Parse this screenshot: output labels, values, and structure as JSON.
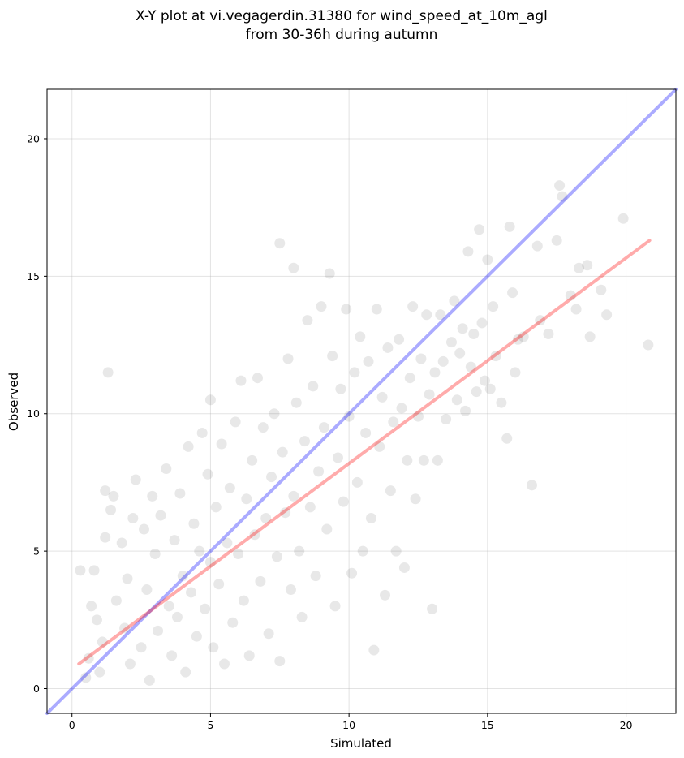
{
  "chart_data": {
    "type": "scatter",
    "title_lines": [
      "X-Y plot at vi.vegagerdin.31380 for wind_speed_at_10m_agl",
      "from 30-36h during autumn"
    ],
    "xlabel": "Simulated",
    "ylabel": "Observed",
    "xlim": [
      -0.9,
      21.8
    ],
    "ylim": [
      -0.9,
      21.8
    ],
    "xticks": [
      0,
      5,
      10,
      15,
      20
    ],
    "yticks": [
      0,
      5,
      10,
      15,
      20
    ],
    "grid": true,
    "points_style": {
      "color": "#000000",
      "opacity": 0.09
    },
    "reference_line": {
      "name": "",
      "color": "#0000ff",
      "x": [
        -0.9,
        21.8
      ],
      "y": [
        -0.9,
        21.8
      ]
    },
    "fit_line": {
      "name": "",
      "color": "#ff0000",
      "x": [
        0.25,
        20.85
      ],
      "y": [
        0.9,
        16.3
      ]
    },
    "points": [
      [
        0.3,
        4.3
      ],
      [
        0.5,
        0.4
      ],
      [
        0.6,
        1.1
      ],
      [
        0.7,
        3.0
      ],
      [
        0.8,
        4.3
      ],
      [
        0.9,
        2.5
      ],
      [
        1.0,
        0.6
      ],
      [
        1.1,
        1.7
      ],
      [
        1.2,
        5.5
      ],
      [
        1.2,
        7.2
      ],
      [
        1.3,
        11.5
      ],
      [
        1.4,
        6.5
      ],
      [
        1.5,
        7.0
      ],
      [
        1.6,
        3.2
      ],
      [
        1.8,
        5.3
      ],
      [
        1.9,
        2.2
      ],
      [
        2.0,
        4.0
      ],
      [
        2.1,
        0.9
      ],
      [
        2.2,
        6.2
      ],
      [
        2.3,
        7.6
      ],
      [
        2.5,
        1.5
      ],
      [
        2.6,
        5.8
      ],
      [
        2.7,
        3.6
      ],
      [
        2.8,
        0.3
      ],
      [
        2.9,
        7.0
      ],
      [
        3.0,
        4.9
      ],
      [
        3.1,
        2.1
      ],
      [
        3.2,
        6.3
      ],
      [
        3.4,
        8.0
      ],
      [
        3.5,
        3.0
      ],
      [
        3.6,
        1.2
      ],
      [
        3.7,
        5.4
      ],
      [
        3.8,
        2.6
      ],
      [
        3.9,
        7.1
      ],
      [
        4.0,
        4.1
      ],
      [
        4.1,
        0.6
      ],
      [
        4.2,
        8.8
      ],
      [
        4.3,
        3.5
      ],
      [
        4.4,
        6.0
      ],
      [
        4.5,
        1.9
      ],
      [
        4.6,
        5.0
      ],
      [
        4.7,
        9.3
      ],
      [
        4.8,
        2.9
      ],
      [
        4.9,
        7.8
      ],
      [
        5.0,
        10.5
      ],
      [
        5.0,
        4.6
      ],
      [
        5.1,
        1.5
      ],
      [
        5.2,
        6.6
      ],
      [
        5.3,
        3.8
      ],
      [
        5.4,
        8.9
      ],
      [
        5.5,
        0.9
      ],
      [
        5.6,
        5.3
      ],
      [
        5.7,
        7.3
      ],
      [
        5.8,
        2.4
      ],
      [
        5.9,
        9.7
      ],
      [
        6.0,
        4.9
      ],
      [
        6.1,
        11.2
      ],
      [
        6.2,
        3.2
      ],
      [
        6.3,
        6.9
      ],
      [
        6.4,
        1.2
      ],
      [
        6.5,
        8.3
      ],
      [
        6.6,
        5.6
      ],
      [
        6.7,
        11.3
      ],
      [
        6.8,
        3.9
      ],
      [
        6.9,
        9.5
      ],
      [
        7.0,
        6.2
      ],
      [
        7.1,
        2.0
      ],
      [
        7.2,
        7.7
      ],
      [
        7.3,
        10.0
      ],
      [
        7.4,
        4.8
      ],
      [
        7.5,
        16.2
      ],
      [
        7.5,
        1.0
      ],
      [
        7.6,
        8.6
      ],
      [
        7.7,
        6.4
      ],
      [
        7.8,
        12.0
      ],
      [
        7.9,
        3.6
      ],
      [
        8.0,
        15.3
      ],
      [
        8.0,
        7.0
      ],
      [
        8.1,
        10.4
      ],
      [
        8.2,
        5.0
      ],
      [
        8.3,
        2.6
      ],
      [
        8.4,
        9.0
      ],
      [
        8.5,
        13.4
      ],
      [
        8.6,
        6.6
      ],
      [
        8.7,
        11.0
      ],
      [
        8.8,
        4.1
      ],
      [
        8.9,
        7.9
      ],
      [
        9.0,
        13.9
      ],
      [
        9.1,
        9.5
      ],
      [
        9.2,
        5.8
      ],
      [
        9.3,
        15.1
      ],
      [
        9.4,
        12.1
      ],
      [
        9.5,
        3.0
      ],
      [
        9.6,
        8.4
      ],
      [
        9.7,
        10.9
      ],
      [
        9.8,
        6.8
      ],
      [
        9.9,
        13.8
      ],
      [
        10.0,
        9.9
      ],
      [
        10.1,
        4.2
      ],
      [
        10.2,
        11.5
      ],
      [
        10.3,
        7.5
      ],
      [
        10.4,
        12.8
      ],
      [
        10.5,
        5.0
      ],
      [
        10.6,
        9.3
      ],
      [
        10.7,
        11.9
      ],
      [
        10.8,
        6.2
      ],
      [
        10.9,
        1.4
      ],
      [
        11.0,
        13.8
      ],
      [
        11.1,
        8.8
      ],
      [
        11.2,
        10.6
      ],
      [
        11.3,
        3.4
      ],
      [
        11.4,
        12.4
      ],
      [
        11.5,
        7.2
      ],
      [
        11.6,
        9.7
      ],
      [
        11.7,
        5.0
      ],
      [
        11.8,
        12.7
      ],
      [
        11.9,
        10.2
      ],
      [
        12.0,
        4.4
      ],
      [
        12.1,
        8.3
      ],
      [
        12.2,
        11.3
      ],
      [
        12.3,
        13.9
      ],
      [
        12.4,
        6.9
      ],
      [
        12.5,
        9.9
      ],
      [
        12.6,
        12.0
      ],
      [
        12.7,
        8.3
      ],
      [
        12.8,
        13.6
      ],
      [
        12.9,
        10.7
      ],
      [
        13.0,
        2.9
      ],
      [
        13.1,
        11.5
      ],
      [
        13.2,
        8.3
      ],
      [
        13.3,
        13.6
      ],
      [
        13.4,
        11.9
      ],
      [
        13.5,
        9.8
      ],
      [
        13.7,
        12.6
      ],
      [
        13.8,
        14.1
      ],
      [
        13.9,
        10.5
      ],
      [
        14.0,
        12.2
      ],
      [
        14.1,
        13.1
      ],
      [
        14.2,
        10.1
      ],
      [
        14.3,
        15.9
      ],
      [
        14.4,
        11.7
      ],
      [
        14.5,
        12.9
      ],
      [
        14.6,
        10.8
      ],
      [
        14.7,
        16.7
      ],
      [
        14.8,
        13.3
      ],
      [
        14.9,
        11.2
      ],
      [
        15.0,
        15.6
      ],
      [
        15.1,
        10.9
      ],
      [
        15.2,
        13.9
      ],
      [
        15.3,
        12.1
      ],
      [
        15.5,
        10.4
      ],
      [
        15.7,
        9.1
      ],
      [
        15.8,
        16.8
      ],
      [
        15.9,
        14.4
      ],
      [
        16.0,
        11.5
      ],
      [
        16.1,
        12.7
      ],
      [
        16.3,
        12.8
      ],
      [
        16.6,
        7.4
      ],
      [
        16.8,
        16.1
      ],
      [
        16.9,
        13.4
      ],
      [
        17.2,
        12.9
      ],
      [
        17.5,
        16.3
      ],
      [
        17.6,
        18.3
      ],
      [
        17.7,
        17.9
      ],
      [
        18.0,
        14.3
      ],
      [
        18.2,
        13.8
      ],
      [
        18.3,
        15.3
      ],
      [
        18.6,
        15.4
      ],
      [
        18.7,
        12.8
      ],
      [
        19.1,
        14.5
      ],
      [
        19.3,
        13.6
      ],
      [
        19.9,
        17.1
      ],
      [
        20.8,
        12.5
      ]
    ]
  }
}
